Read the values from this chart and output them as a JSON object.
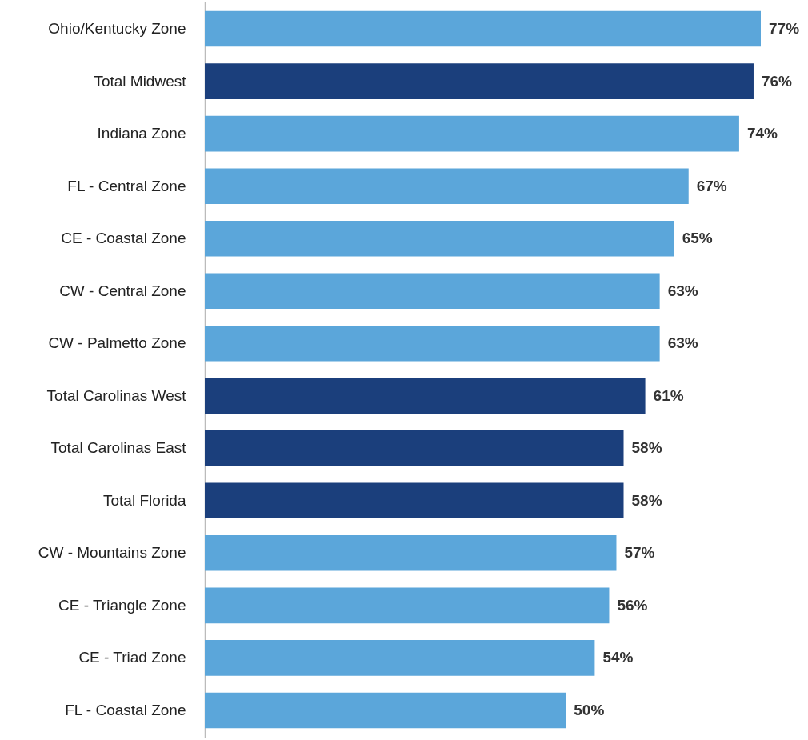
{
  "chart_data": {
    "type": "bar",
    "orientation": "horizontal",
    "value_labels": [
      "77%",
      "76%",
      "74%",
      "67%",
      "65%",
      "63%",
      "63%",
      "61%",
      "58%",
      "58%",
      "57%",
      "56%",
      "54%",
      "50%"
    ],
    "categories": [
      "Ohio/Kentucky Zone",
      "Total Midwest",
      "Indiana Zone",
      "FL - Central Zone",
      "CE - Coastal Zone",
      "CW - Central Zone",
      "CW - Palmetto Zone",
      "Total Carolinas West",
      "Total Carolinas East",
      "Total Florida",
      "CW - Mountains Zone",
      "CE - Triangle Zone",
      "CE - Triad Zone",
      "FL - Coastal Zone"
    ],
    "values": [
      77,
      76,
      74,
      67,
      65,
      63,
      63,
      61,
      58,
      58,
      57,
      56,
      54,
      50
    ],
    "colors": [
      "#5ba6da",
      "#1b3f7c",
      "#5ba6da",
      "#5ba6da",
      "#5ba6da",
      "#5ba6da",
      "#5ba6da",
      "#1b3f7c",
      "#1b3f7c",
      "#1b3f7c",
      "#5ba6da",
      "#5ba6da",
      "#5ba6da",
      "#5ba6da"
    ]
  }
}
